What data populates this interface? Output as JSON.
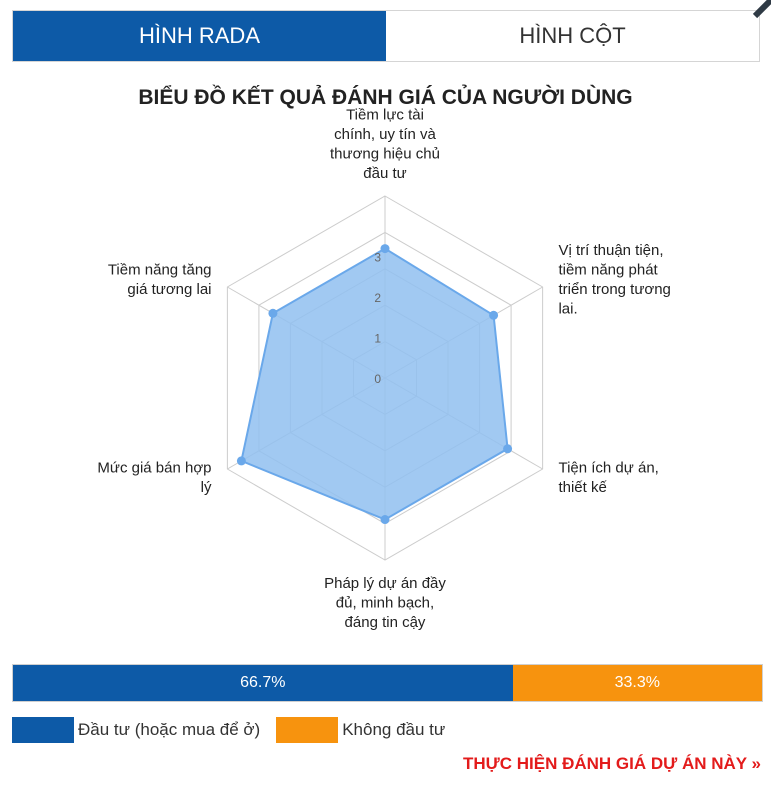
{
  "tabs": [
    {
      "label": "HÌNH RADA",
      "active": true
    },
    {
      "label": "HÌNH CỘT",
      "active": false
    }
  ],
  "title": "BIỂU ĐỒ KẾT QUẢ ĐÁNH GIÁ CỦA NGƯỜI DÙNG",
  "chart_data": {
    "type": "radar",
    "axes": [
      [
        "Tiềm lực tài",
        "chính, uy tín và",
        "thương hiệu chủ",
        "đầu tư"
      ],
      [
        "Vị trí thuận tiện,",
        "tiềm năng phát",
        "triển trong tương",
        "lai."
      ],
      [
        "Tiện ích dự án,",
        "thiết kế"
      ],
      [
        "Pháp lý dự án đầy",
        "đủ, minh bạch,",
        "đáng tin cậy"
      ],
      [
        "Mức giá bán hợp",
        "lý"
      ],
      [
        "Tiềm năng tăng",
        "giá tương lai"
      ]
    ],
    "values": [
      3.2,
      3.1,
      3.5,
      3.5,
      4.1,
      3.2
    ],
    "rticks": [
      "0",
      "1",
      "2",
      "3"
    ],
    "rmax": 4.5,
    "grid": true,
    "colors": {
      "fill": "#90bff0",
      "stroke": "#6aa8ea",
      "grid": "#cccccc"
    }
  },
  "investment_split": {
    "invest": {
      "label": "Đầu tư (hoặc mua để ở)",
      "percent": 66.7,
      "display": "66.7%",
      "color": "#0d5aa7"
    },
    "not_invest": {
      "label": "Không đầu tư",
      "percent": 33.3,
      "display": "33.3%",
      "color": "#f7930e"
    }
  },
  "cta_label": "THỰC HIỆN ĐÁNH GIÁ DỰ ÁN NÀY »",
  "icons": {
    "corner": "diagonal-arrow-icon"
  }
}
